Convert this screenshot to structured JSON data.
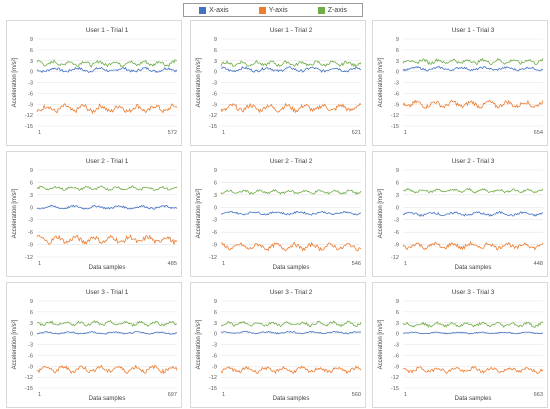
{
  "legend": {
    "items": [
      {
        "label": "X-axis",
        "color": "#4472C4"
      },
      {
        "label": "Y-axis",
        "color": "#ED7D31"
      },
      {
        "label": "Z-axis",
        "color": "#70AD47"
      }
    ]
  },
  "chart_data": [
    {
      "type": "line",
      "title": "User 1 - Trial 1",
      "xlabel": "",
      "ylabel": "Acceleration [m/s²]",
      "ylim": [
        -15,
        9
      ],
      "yticks": [
        9,
        6,
        3,
        0,
        -3,
        -6,
        -9,
        -12,
        -15
      ],
      "xlim": [
        1,
        572
      ],
      "xtick_labels": [
        "1",
        "572"
      ],
      "series": [
        {
          "name": "X-axis",
          "mean": 0.5,
          "amplitude": 0.8
        },
        {
          "name": "Y-axis",
          "mean": -10.2,
          "amplitude": 1.4
        },
        {
          "name": "Z-axis",
          "mean": 2.3,
          "amplitude": 1.0
        }
      ]
    },
    {
      "type": "line",
      "title": "User 1 - Trial 2",
      "xlabel": "",
      "ylabel": "Acceleration [m/s²]",
      "ylim": [
        -15,
        9
      ],
      "yticks": [
        9,
        6,
        3,
        0,
        -3,
        -6,
        -9,
        -12,
        -15
      ],
      "xlim": [
        1,
        621
      ],
      "xtick_labels": [
        "1",
        "621"
      ],
      "series": [
        {
          "name": "X-axis",
          "mean": 0.6,
          "amplitude": 0.8
        },
        {
          "name": "Y-axis",
          "mean": -10.0,
          "amplitude": 1.3
        },
        {
          "name": "Z-axis",
          "mean": 2.2,
          "amplitude": 0.9
        }
      ]
    },
    {
      "type": "line",
      "title": "User 1 - Trial 3",
      "xlabel": "",
      "ylabel": "Acceleration [m/s²]",
      "ylim": [
        -15,
        9
      ],
      "yticks": [
        9,
        6,
        3,
        0,
        -3,
        -6,
        -9,
        -12,
        -15
      ],
      "xlim": [
        1,
        654
      ],
      "xtick_labels": [
        "1",
        "654"
      ],
      "series": [
        {
          "name": "X-axis",
          "mean": 0.8,
          "amplitude": 0.6
        },
        {
          "name": "Y-axis",
          "mean": -9.0,
          "amplitude": 1.2
        },
        {
          "name": "Z-axis",
          "mean": 2.8,
          "amplitude": 0.9
        }
      ]
    },
    {
      "type": "line",
      "title": "User 2 - Trial 1",
      "xlabel": "Data samples",
      "ylabel": "Acceleration [m/s²]",
      "ylim": [
        -12,
        9
      ],
      "yticks": [
        9,
        6,
        3,
        0,
        -3,
        -6,
        -9,
        -12
      ],
      "xlim": [
        1,
        485
      ],
      "xtick_labels": [
        "1",
        "485"
      ],
      "series": [
        {
          "name": "X-axis",
          "mean": 0.0,
          "amplitude": 0.5
        },
        {
          "name": "Y-axis",
          "mean": -7.8,
          "amplitude": 1.2
        },
        {
          "name": "Z-axis",
          "mean": 4.6,
          "amplitude": 0.6
        }
      ]
    },
    {
      "type": "line",
      "title": "User 2 - Trial 2",
      "xlabel": "Data samples",
      "ylabel": "Acceleration [m/s²]",
      "ylim": [
        -12,
        9
      ],
      "yticks": [
        9,
        6,
        3,
        0,
        -3,
        -6,
        -9,
        -12
      ],
      "xlim": [
        1,
        546
      ],
      "xtick_labels": [
        "1",
        "546"
      ],
      "series": [
        {
          "name": "X-axis",
          "mean": -1.4,
          "amplitude": 0.5
        },
        {
          "name": "Y-axis",
          "mean": -9.5,
          "amplitude": 1.0
        },
        {
          "name": "Z-axis",
          "mean": 3.7,
          "amplitude": 0.6
        }
      ]
    },
    {
      "type": "line",
      "title": "User 2 - Trial 3",
      "xlabel": "Data samples",
      "ylabel": "Acceleration [m/s²]",
      "ylim": [
        -12,
        9
      ],
      "yticks": [
        9,
        6,
        3,
        0,
        -3,
        -6,
        -9,
        -12
      ],
      "xlim": [
        1,
        448
      ],
      "xtick_labels": [
        "1",
        "448"
      ],
      "series": [
        {
          "name": "X-axis",
          "mean": -1.6,
          "amplitude": 0.6
        },
        {
          "name": "Y-axis",
          "mean": -9.3,
          "amplitude": 1.0
        },
        {
          "name": "Z-axis",
          "mean": 4.0,
          "amplitude": 0.6
        }
      ]
    },
    {
      "type": "line",
      "title": "User 3 - Trial 1",
      "xlabel": "Data samples",
      "ylabel": "Acceleration [m/s²]",
      "ylim": [
        -15,
        9
      ],
      "yticks": [
        9,
        6,
        3,
        0,
        -3,
        -6,
        -9,
        -12,
        -15
      ],
      "xlim": [
        1,
        697
      ],
      "xtick_labels": [
        "1",
        "697"
      ],
      "series": [
        {
          "name": "X-axis",
          "mean": 0.2,
          "amplitude": 0.4
        },
        {
          "name": "Y-axis",
          "mean": -9.8,
          "amplitude": 1.2
        },
        {
          "name": "Z-axis",
          "mean": 2.8,
          "amplitude": 0.8
        }
      ]
    },
    {
      "type": "line",
      "title": "User 3 - Trial 2",
      "xlabel": "Data samples",
      "ylabel": "Acceleration [m/s²]",
      "ylim": [
        -15,
        9
      ],
      "yticks": [
        9,
        6,
        3,
        0,
        -3,
        -6,
        -9,
        -12,
        -15
      ],
      "xlim": [
        1,
        560
      ],
      "xtick_labels": [
        "1",
        "560"
      ],
      "series": [
        {
          "name": "X-axis",
          "mean": 0.3,
          "amplitude": 0.4
        },
        {
          "name": "Y-axis",
          "mean": -10.0,
          "amplitude": 1.0
        },
        {
          "name": "Z-axis",
          "mean": 2.7,
          "amplitude": 0.8
        }
      ]
    },
    {
      "type": "line",
      "title": "User 3 - Trial 3",
      "xlabel": "Data samples",
      "ylabel": "Acceleration [m/s²]",
      "ylim": [
        -15,
        9
      ],
      "yticks": [
        9,
        6,
        3,
        0,
        -3,
        -6,
        -9,
        -12,
        -15
      ],
      "xlim": [
        1,
        663
      ],
      "xtick_labels": [
        "1",
        "663"
      ],
      "series": [
        {
          "name": "X-axis",
          "mean": 0.2,
          "amplitude": 0.3
        },
        {
          "name": "Y-axis",
          "mean": -10.0,
          "amplitude": 1.0
        },
        {
          "name": "Z-axis",
          "mean": 2.5,
          "amplitude": 0.8
        }
      ]
    }
  ]
}
